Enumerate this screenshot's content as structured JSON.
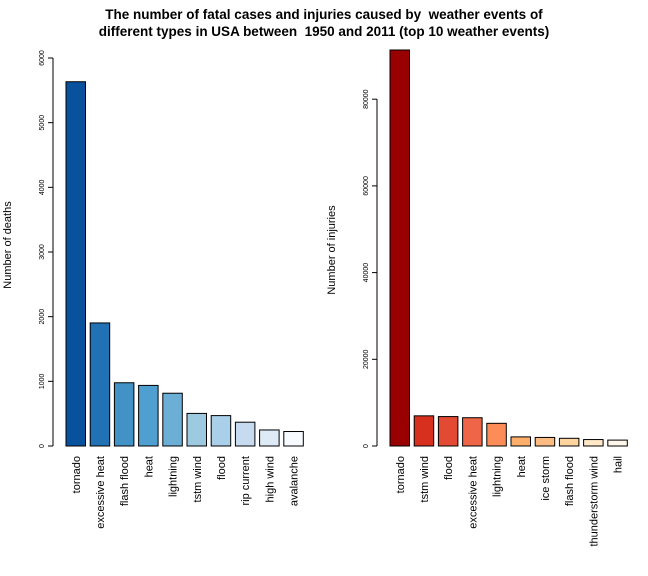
{
  "title_lines": [
    "The number of fatal cases and injuries caused by  weather events of",
    "different types in USA between  1950 and 2011 (top 10 weather events)"
  ],
  "chart_data": [
    {
      "type": "bar",
      "ylabel": "Number of deaths",
      "ylim": [
        0,
        6000
      ],
      "yticks": [
        0,
        1000,
        2000,
        3000,
        4000,
        5000,
        6000
      ],
      "categories": [
        "tornado",
        "excessive heat",
        "flash flood",
        "heat",
        "lightning",
        "tstm wind",
        "flood",
        "rip current",
        "high wind",
        "avalanche"
      ],
      "values": [
        5633,
        1903,
        978,
        937,
        816,
        504,
        470,
        368,
        248,
        224
      ],
      "colors": [
        "#08519c",
        "#2171b5",
        "#4292c6",
        "#4f9fd0",
        "#6baed6",
        "#9ecae1",
        "#a9d0e8",
        "#c6dbef",
        "#deebf7",
        "#f7fbff"
      ]
    },
    {
      "type": "bar",
      "ylabel": "Number of injuries",
      "ylim": [
        0,
        91346
      ],
      "yticks": [
        0,
        20000,
        40000,
        60000,
        80000
      ],
      "categories": [
        "tornado",
        "tstm wind",
        "flood",
        "excessive heat",
        "lightning",
        "heat",
        "ice storm",
        "flash flood",
        "thunderstorm wind",
        "hail"
      ],
      "values": [
        91346,
        6957,
        6789,
        6525,
        5230,
        2100,
        1975,
        1777,
        1488,
        1361
      ],
      "colors": [
        "#990000",
        "#d7301f",
        "#e34a33",
        "#ef6548",
        "#fc8d59",
        "#fdae6b",
        "#fdbb84",
        "#fdd49e",
        "#fee8c8",
        "#fff7ec"
      ]
    }
  ]
}
